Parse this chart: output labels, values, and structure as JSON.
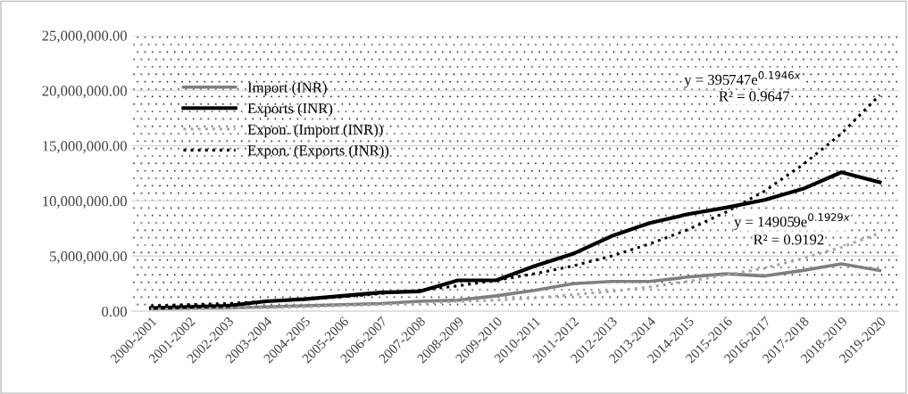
{
  "chart_data": {
    "type": "line",
    "categories": [
      "2000-2001",
      "2001-2002",
      "2002-2003",
      "2003-2004",
      "2004-2005",
      "2005-2006",
      "2006-2007",
      "2007-2008",
      "2008-2009",
      "2009-2010",
      "2010-2011",
      "2011-2012",
      "2012-2013",
      "2013-2014",
      "2014-2015",
      "2015-2016",
      "2016-2017",
      "2017-2018",
      "2018-2019",
      "2019-2020"
    ],
    "series": [
      {
        "name": "Import (INR)",
        "color": "#7f7f7f",
        "line_style": "solid",
        "values": [
          200000,
          300000,
          300000,
          400000,
          500000,
          600000,
          700000,
          900000,
          1000000,
          1400000,
          1900000,
          2500000,
          2700000,
          2700000,
          3100000,
          3400000,
          3200000,
          3700000,
          4300000,
          3700000
        ]
      },
      {
        "name": "Exports (INR)",
        "color": "#000000",
        "line_style": "solid",
        "values": [
          300000,
          400000,
          500000,
          900000,
          1100000,
          1400000,
          1700000,
          1800000,
          2800000,
          2800000,
          4100000,
          5200000,
          6800000,
          8000000,
          8800000,
          9400000,
          10100000,
          11100000,
          12600000,
          11700000
        ]
      },
      {
        "name": "Expon. (Import (INR))",
        "color": "#a6a6a6",
        "line_style": "dotted",
        "values": [
          200000,
          200000,
          300000,
          300000,
          400000,
          500000,
          600000,
          700000,
          900000,
          1000000,
          1200000,
          1500000,
          1800000,
          2200000,
          2700000,
          3300000,
          3900000,
          4800000,
          5800000,
          7100000
        ]
      },
      {
        "name": "Expon. (Exports (INR))",
        "color": "#000000",
        "line_style": "dotted",
        "values": [
          500000,
          600000,
          700000,
          900000,
          1100000,
          1300000,
          1600000,
          1900000,
          2300000,
          2800000,
          3400000,
          4100000,
          5000000,
          6100000,
          7400000,
          9000000,
          10900000,
          13300000,
          16100000,
          19600000
        ]
      }
    ],
    "ylim": [
      0,
      25000000
    ],
    "yticks": [
      {
        "value": 0,
        "label": "0.00"
      },
      {
        "value": 5000000,
        "label": "5,000,000.00"
      },
      {
        "value": 10000000,
        "label": "10,000,000.00"
      },
      {
        "value": 15000000,
        "label": "15,000,000.00"
      },
      {
        "value": 20000000,
        "label": "20,000,000.00"
      },
      {
        "value": 25000000,
        "label": "25,000,000.00"
      }
    ],
    "grid": "y",
    "legend": "top left",
    "marker": "none",
    "annotations": [
      "y = 395747e$^{0.1946x}$",
      "R² = 0.9647",
      "y = 149059e$^{0.1929x}$",
      "R² = 0.9192"
    ]
  }
}
